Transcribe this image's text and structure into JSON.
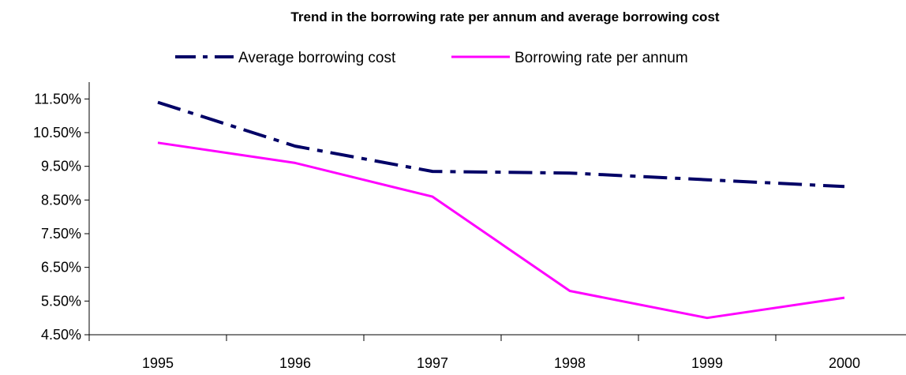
{
  "chart_data": {
    "type": "line",
    "title": "Trend in the borrowing rate per annum and average borrowing cost",
    "xlabel": "",
    "ylabel": "",
    "categories": [
      "1995",
      "1996",
      "1997",
      "1998",
      "1999",
      "2000"
    ],
    "y_ticks": [
      "4.50%",
      "5.50%",
      "6.50%",
      "7.50%",
      "8.50%",
      "9.50%",
      "10.50%",
      "11.50%"
    ],
    "ylim": [
      4.5,
      12.0
    ],
    "grid": false,
    "legend_position": "top",
    "series": [
      {
        "name": "Average borrowing cost",
        "values": [
          11.4,
          10.1,
          9.35,
          9.3,
          9.1,
          8.9
        ],
        "color": "#000066",
        "style": "dash-dot"
      },
      {
        "name": "Borrowing rate per annum",
        "values": [
          10.2,
          9.6,
          8.6,
          5.8,
          5.0,
          5.6
        ],
        "color": "#ff00ff",
        "style": "solid"
      }
    ]
  }
}
